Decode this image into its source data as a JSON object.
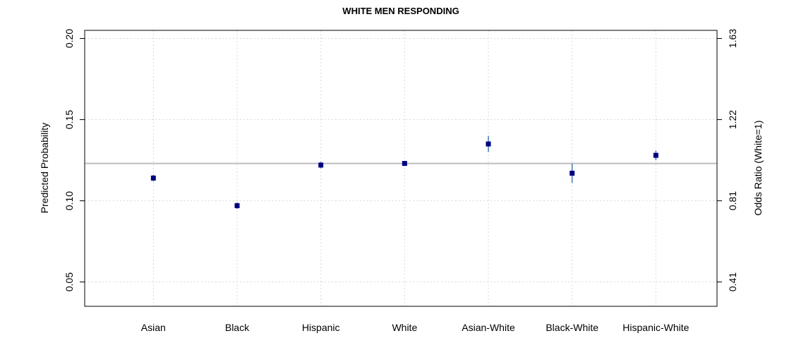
{
  "chart_data": {
    "type": "scatter",
    "title": "WHITE MEN RESPONDING",
    "xlabel": "",
    "ylabel": "Predicted Probability",
    "y2label": "Odds Ratio (White=1)",
    "categories": [
      "Asian",
      "Black",
      "Hispanic",
      "White",
      "Asian-White",
      "Black-White",
      "Hispanic-White"
    ],
    "series": [
      {
        "values": [
          0.114,
          0.097,
          0.122,
          0.123,
          0.135,
          0.117,
          0.128
        ],
        "lower": [
          0.112,
          0.095,
          0.12,
          0.122,
          0.13,
          0.111,
          0.125
        ],
        "upper": [
          0.116,
          0.099,
          0.124,
          0.124,
          0.14,
          0.123,
          0.131
        ]
      }
    ],
    "reference_line": 0.123,
    "ylim": [
      0.035,
      0.205
    ],
    "yticks": [
      "0.05",
      "0.10",
      "0.15",
      "0.20"
    ],
    "y2ticks": [
      "0.41",
      "0.81",
      "1.22",
      "1.63"
    ],
    "grid": true,
    "colors": {
      "point": "#00007f",
      "errorbar": "#4f81bd",
      "refline": "#bebebe",
      "grid": "#d9d9d9"
    }
  }
}
